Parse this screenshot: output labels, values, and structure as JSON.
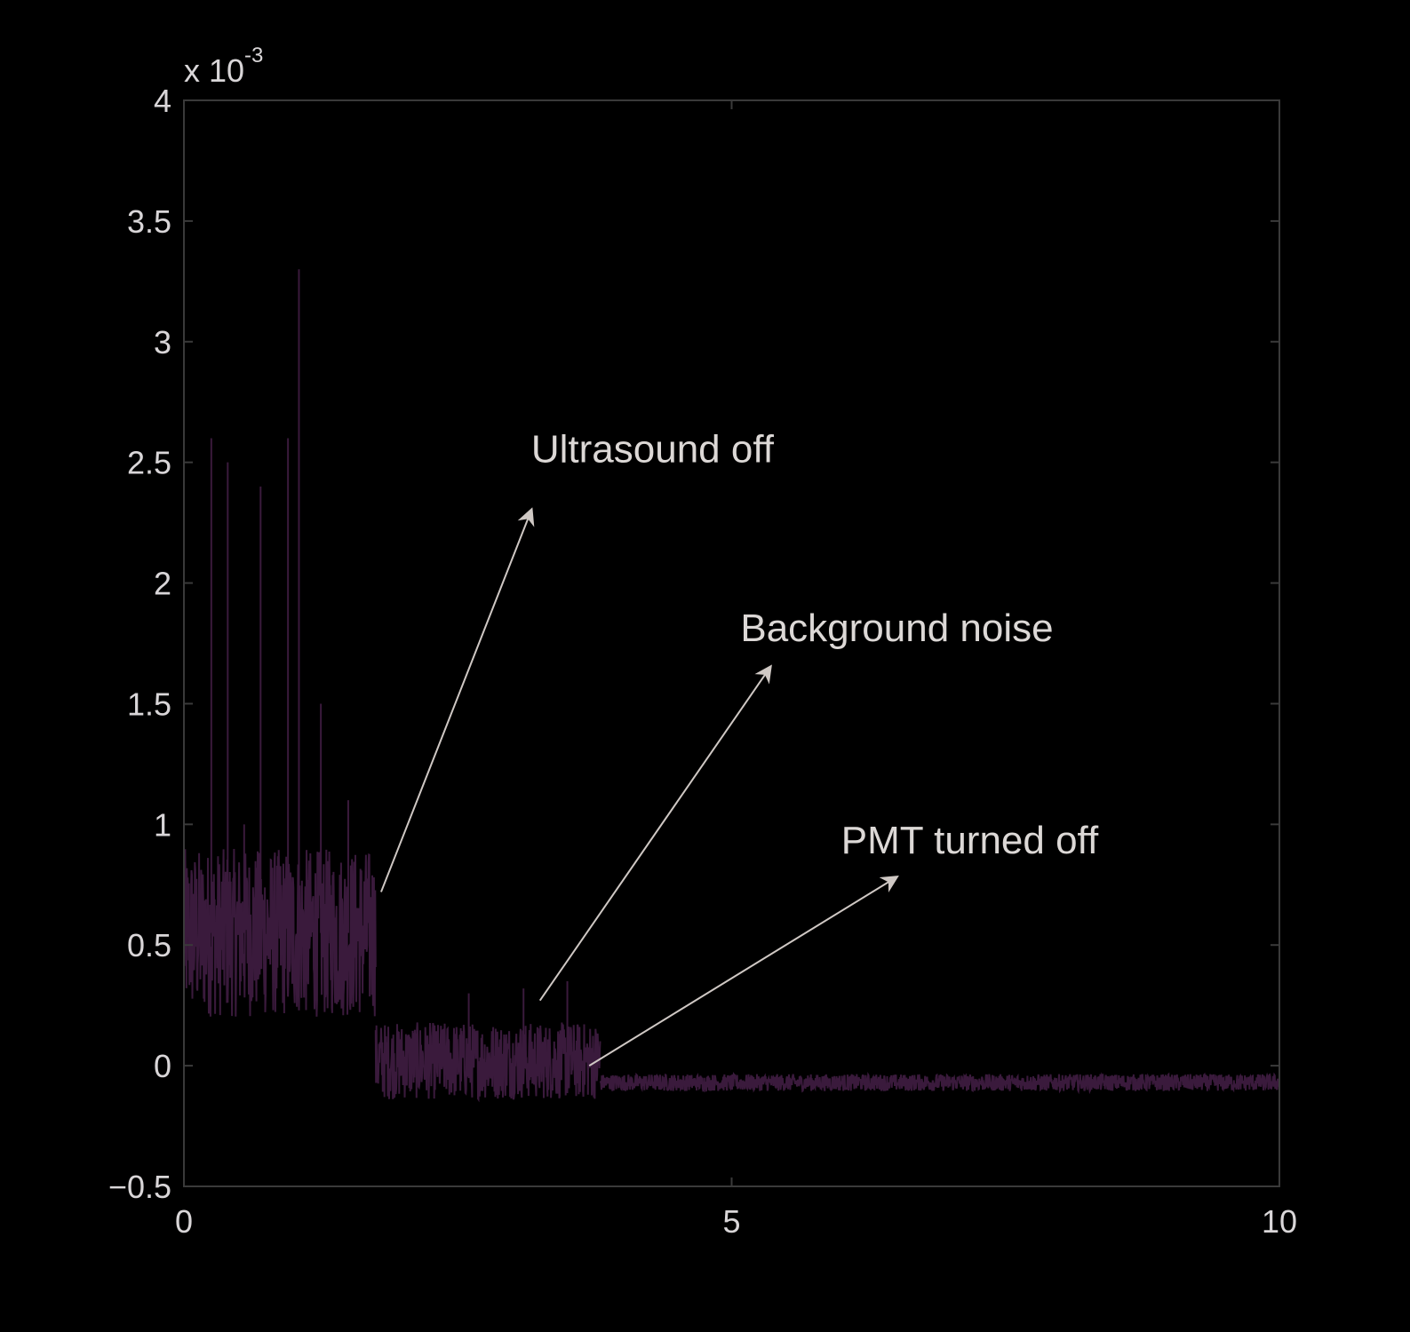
{
  "chart_data": {
    "type": "line",
    "title": "",
    "xlabel": "",
    "ylabel": "",
    "xlim": [
      0,
      10
    ],
    "ylim": [
      -0.5,
      4
    ],
    "y_multiplier": {
      "base": "x 10",
      "exponent": "-3"
    },
    "x_ticks": [
      "0",
      "5",
      "10"
    ],
    "y_ticks": [
      "−0.5",
      "0",
      "0.5",
      "1",
      "1.5",
      "2",
      "2.5",
      "3",
      "3.5",
      "4"
    ],
    "grid": false,
    "colors": {
      "background": "#000000",
      "axes": "#3a3a3a",
      "signal": "#3a1a3c",
      "text": "#d9d6d8",
      "arrow": "#cfc8c4"
    },
    "segments": [
      {
        "x_start": 0.0,
        "x_end": 1.75,
        "baseline": 0.55,
        "noise_amp": 0.35,
        "spikes": [
          [
            0.25,
            2.6
          ],
          [
            0.4,
            2.5
          ],
          [
            0.7,
            2.4
          ],
          [
            0.95,
            2.6
          ],
          [
            1.05,
            3.3
          ],
          [
            1.25,
            1.5
          ],
          [
            0.55,
            1.0
          ],
          [
            1.5,
            1.1
          ]
        ]
      },
      {
        "x_start": 1.75,
        "x_end": 3.8,
        "baseline": 0.02,
        "noise_amp": 0.16,
        "spikes": [
          [
            2.6,
            0.3
          ],
          [
            3.1,
            0.32
          ],
          [
            3.5,
            0.35
          ]
        ]
      },
      {
        "x_start": 3.8,
        "x_end": 10.0,
        "baseline": -0.07,
        "noise_amp": 0.035,
        "spikes": [
          [
            10.0,
            0.05
          ]
        ]
      }
    ],
    "annotations": [
      {
        "text": "Ultrasound off",
        "text_x": 3.17,
        "text_y": 2.5,
        "tail": [
          1.8,
          0.72
        ],
        "head": [
          3.17,
          2.3
        ]
      },
      {
        "text": "Background noise",
        "text_x": 5.08,
        "text_y": 1.76,
        "tail": [
          3.25,
          0.27
        ],
        "head": [
          5.35,
          1.65
        ]
      },
      {
        "text": "PMT turned off",
        "text_x": 6.0,
        "text_y": 0.88,
        "tail": [
          3.7,
          0.0
        ],
        "head": [
          6.5,
          0.78
        ]
      }
    ]
  }
}
